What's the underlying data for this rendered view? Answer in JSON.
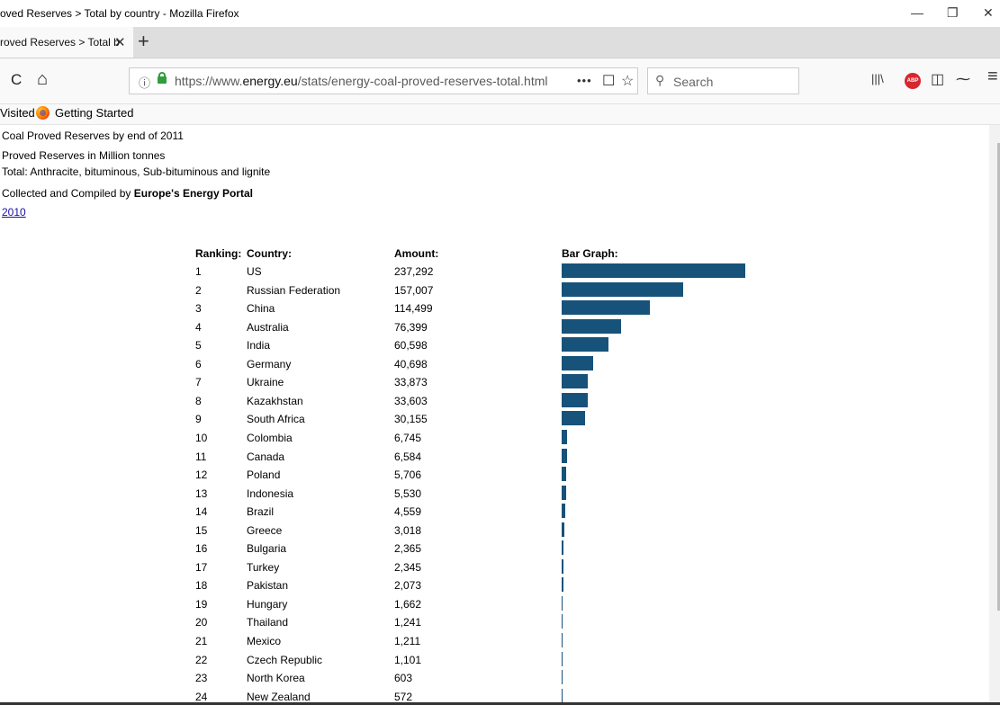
{
  "window": {
    "title": "oved Reserves > Total by country - Mozilla Firefox",
    "minimize": "—",
    "maximize": "❐",
    "close": "✕"
  },
  "tab": {
    "label": "roved Reserves > Total b",
    "close": "✕",
    "new_tab": "+"
  },
  "nav": {
    "reload": "C",
    "home": "⌂",
    "info": "ⓘ",
    "url_prefix": "https://www.",
    "url_domain": "energy.eu",
    "url_path": "/stats/energy-coal-proved-reserves-total.html",
    "page_actions": "•••",
    "pocket": "☐",
    "bookmark_star": "☆",
    "search_placeholder": "Search",
    "search_glyph": "⚲",
    "library": "|||\\",
    "abp": "ABP",
    "sidebar": "◫",
    "extension": "⁓",
    "menu": "≡"
  },
  "bookmarks": {
    "most_visited": "Visited",
    "getting_started": "Getting Started"
  },
  "page": {
    "line1": "Coal Proved Reserves by end of 2011",
    "line2": "Proved Reserves in Million tonnes",
    "line3": "Total: Anthracite, bituminous, Sub-bituminous and lignite",
    "line4_prefix": "Collected and Compiled by ",
    "line4_bold": "Europe's Energy Portal",
    "year_link": "2010"
  },
  "table": {
    "headers": {
      "ranking": "Ranking:",
      "country": "Country:",
      "amount": "Amount:",
      "bar": "Bar Graph:"
    },
    "bar_color": "#17527a",
    "rows": [
      {
        "rank": "1",
        "country": "US",
        "amount": "237,292",
        "value": 237292
      },
      {
        "rank": "2",
        "country": "Russian Federation",
        "amount": "157,007",
        "value": 157007
      },
      {
        "rank": "3",
        "country": "China",
        "amount": "114,499",
        "value": 114499
      },
      {
        "rank": "4",
        "country": "Australia",
        "amount": "76,399",
        "value": 76399
      },
      {
        "rank": "5",
        "country": "India",
        "amount": "60,598",
        "value": 60598
      },
      {
        "rank": "6",
        "country": "Germany",
        "amount": "40,698",
        "value": 40698
      },
      {
        "rank": "7",
        "country": "Ukraine",
        "amount": "33,873",
        "value": 33873
      },
      {
        "rank": "8",
        "country": "Kazakhstan",
        "amount": "33,603",
        "value": 33603
      },
      {
        "rank": "9",
        "country": "South Africa",
        "amount": "30,155",
        "value": 30155
      },
      {
        "rank": "10",
        "country": "Colombia",
        "amount": "6,745",
        "value": 6745
      },
      {
        "rank": "11",
        "country": "Canada",
        "amount": "6,584",
        "value": 6584
      },
      {
        "rank": "12",
        "country": "Poland",
        "amount": "5,706",
        "value": 5706
      },
      {
        "rank": "13",
        "country": "Indonesia",
        "amount": "5,530",
        "value": 5530
      },
      {
        "rank": "14",
        "country": "Brazil",
        "amount": "4,559",
        "value": 4559
      },
      {
        "rank": "15",
        "country": "Greece",
        "amount": "3,018",
        "value": 3018
      },
      {
        "rank": "16",
        "country": "Bulgaria",
        "amount": "2,365",
        "value": 2365
      },
      {
        "rank": "17",
        "country": "Turkey",
        "amount": "2,345",
        "value": 2345
      },
      {
        "rank": "18",
        "country": "Pakistan",
        "amount": "2,073",
        "value": 2073
      },
      {
        "rank": "19",
        "country": "Hungary",
        "amount": "1,662",
        "value": 1662
      },
      {
        "rank": "20",
        "country": "Thailand",
        "amount": "1,241",
        "value": 1241
      },
      {
        "rank": "21",
        "country": "Mexico",
        "amount": "1,211",
        "value": 1211
      },
      {
        "rank": "22",
        "country": "Czech Republic",
        "amount": "1,101",
        "value": 1101
      },
      {
        "rank": "23",
        "country": "North Korea",
        "amount": "603",
        "value": 603
      },
      {
        "rank": "24",
        "country": "New Zealand",
        "amount": "572",
        "value": 572
      }
    ]
  }
}
